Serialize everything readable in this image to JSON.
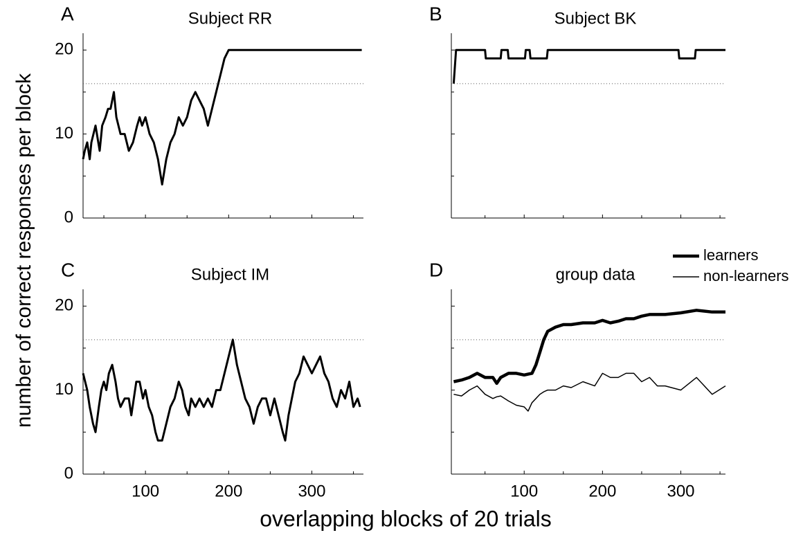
{
  "figure": {
    "ylabel": "number of correct responses per block",
    "xlabel": "overlapping blocks of 20 trials"
  },
  "chart_data": [
    {
      "type": "line",
      "panel_label": "A",
      "title": "Subject RR",
      "color": "#000000",
      "width": 3,
      "x": [
        25,
        27,
        30,
        33,
        35,
        40,
        45,
        48,
        52,
        55,
        58,
        62,
        65,
        70,
        75,
        80,
        85,
        90,
        93,
        96,
        100,
        105,
        110,
        115,
        120,
        125,
        130,
        135,
        140,
        145,
        150,
        155,
        160,
        165,
        170,
        175,
        180,
        185,
        190,
        195,
        200,
        360
      ],
      "values": [
        7,
        8,
        9,
        7,
        9,
        11,
        8,
        11,
        12,
        13,
        13,
        15,
        12,
        10,
        10,
        8,
        9,
        11,
        12,
        11,
        12,
        10,
        9,
        7,
        4,
        7,
        9,
        10,
        12,
        11,
        12,
        14,
        15,
        14,
        13,
        11,
        13,
        15,
        17,
        19,
        20,
        20
      ],
      "xlim": [
        25,
        362
      ],
      "ylim": [
        0,
        22
      ],
      "xticks": [
        100,
        200,
        300
      ],
      "xminor": [
        50,
        150,
        250,
        350
      ],
      "yticks": [
        0,
        10,
        20
      ],
      "yminor": [
        5,
        15
      ],
      "xtick_labels": false,
      "ytick_labels": true,
      "threshold": 16
    },
    {
      "type": "line",
      "panel_label": "B",
      "title": "Subject BK",
      "color": "#000000",
      "width": 3,
      "x": [
        10,
        13,
        50,
        51,
        70,
        71,
        79,
        80,
        101,
        102,
        107,
        108,
        129,
        130,
        297,
        298,
        318,
        319,
        357
      ],
      "values": [
        16,
        20,
        20,
        19,
        19,
        20,
        20,
        19,
        19,
        20,
        20,
        19,
        19,
        20,
        20,
        19,
        19,
        20,
        20
      ],
      "xlim": [
        7,
        357
      ],
      "ylim": [
        0,
        22
      ],
      "xticks": [
        100,
        200,
        300
      ],
      "xminor": [
        50,
        150,
        250,
        350
      ],
      "yticks": [
        0,
        10,
        20
      ],
      "yminor": [
        5,
        15
      ],
      "xtick_labels": false,
      "ytick_labels": false,
      "threshold": 16
    },
    {
      "type": "line",
      "panel_label": "C",
      "title": "Subject IM",
      "color": "#000000",
      "width": 3,
      "x": [
        25,
        30,
        33,
        37,
        40,
        44,
        47,
        50,
        53,
        56,
        60,
        64,
        67,
        70,
        75,
        80,
        83,
        86,
        89,
        93,
        97,
        100,
        104,
        108,
        112,
        115,
        120,
        125,
        130,
        135,
        140,
        144,
        148,
        152,
        155,
        160,
        165,
        170,
        175,
        180,
        185,
        190,
        195,
        200,
        205,
        210,
        215,
        220,
        225,
        230,
        235,
        240,
        245,
        250,
        255,
        260,
        265,
        268,
        272,
        276,
        280,
        285,
        290,
        295,
        300,
        305,
        310,
        315,
        320,
        325,
        330,
        335,
        340,
        345,
        350,
        355,
        358
      ],
      "values": [
        12,
        10,
        8,
        6,
        5,
        8,
        10,
        11,
        10,
        12,
        13,
        11,
        9,
        8,
        9,
        9,
        7,
        9,
        11,
        11,
        9,
        10,
        8,
        7,
        5,
        4,
        4,
        6,
        8,
        9,
        11,
        10,
        8,
        7,
        9,
        8,
        9,
        8,
        9,
        8,
        10,
        10,
        12,
        14,
        16,
        13,
        11,
        9,
        8,
        6,
        8,
        9,
        9,
        7,
        9,
        7,
        5,
        4,
        7,
        9,
        11,
        12,
        14,
        13,
        12,
        13,
        14,
        12,
        11,
        9,
        8,
        10,
        9,
        11,
        8,
        9,
        8
      ],
      "xlim": [
        25,
        362
      ],
      "ylim": [
        0,
        22
      ],
      "xticks": [
        100,
        200,
        300
      ],
      "xminor": [
        50,
        150,
        250,
        350
      ],
      "yticks": [
        0,
        10,
        20
      ],
      "yminor": [
        5,
        15
      ],
      "xtick_labels": true,
      "ytick_labels": true,
      "threshold": 16
    },
    {
      "type": "line",
      "panel_label": "D",
      "title": "group data",
      "x": [
        10,
        20,
        30,
        40,
        50,
        60,
        65,
        70,
        80,
        90,
        100,
        105,
        110,
        115,
        120,
        125,
        130,
        140,
        150,
        160,
        175,
        190,
        200,
        210,
        220,
        230,
        240,
        250,
        260,
        270,
        280,
        300,
        320,
        340,
        357
      ],
      "series": [
        {
          "name": "learners",
          "color": "#000000",
          "width": 4.5,
          "values": [
            11,
            11.2,
            11.5,
            12,
            11.5,
            11.5,
            10.8,
            11.5,
            12,
            12,
            11.8,
            11.9,
            12,
            13,
            14.5,
            16,
            17,
            17.5,
            17.8,
            17.8,
            18,
            18,
            18.3,
            18,
            18.2,
            18.5,
            18.5,
            18.8,
            19,
            19,
            19,
            19.2,
            19.5,
            19.3,
            19.3
          ]
        },
        {
          "name": "non-learners",
          "color": "#000000",
          "width": 1.5,
          "values": [
            9.5,
            9.3,
            10,
            10.5,
            9.5,
            9,
            9.2,
            9.3,
            8.7,
            8.2,
            8,
            7.5,
            8.5,
            9,
            9.5,
            9.8,
            10,
            10,
            10.5,
            10.3,
            11,
            10.5,
            12,
            11.5,
            11.5,
            12,
            12,
            11,
            11.5,
            10.5,
            10.5,
            10,
            11.5,
            9.5,
            10.5
          ]
        }
      ],
      "xlim": [
        7,
        357
      ],
      "ylim": [
        0,
        22
      ],
      "xticks": [
        100,
        200,
        300
      ],
      "xminor": [
        50,
        150,
        250,
        350
      ],
      "yticks": [
        0,
        10,
        20
      ],
      "yminor": [
        5,
        15
      ],
      "xtick_labels": true,
      "ytick_labels": false,
      "threshold": 16
    }
  ]
}
